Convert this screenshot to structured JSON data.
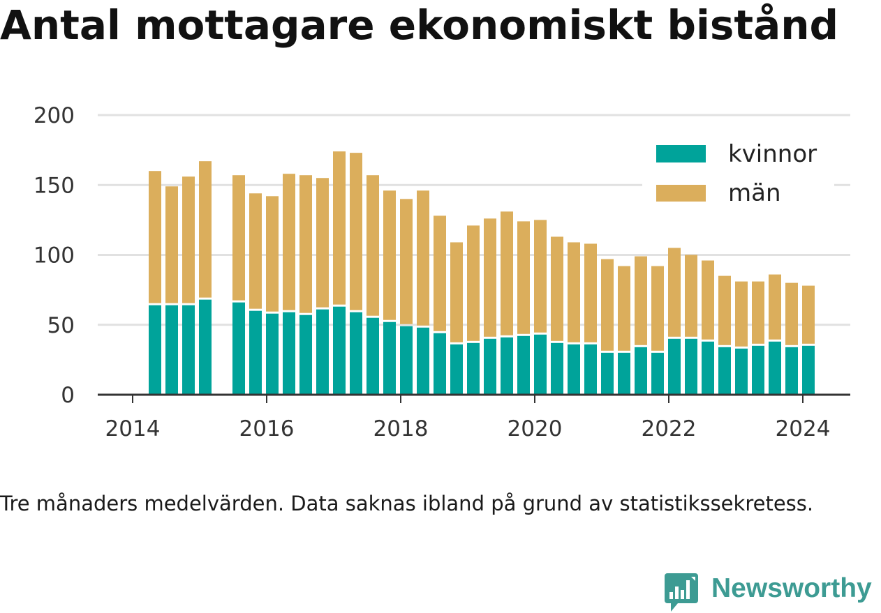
{
  "chart_data": {
    "type": "bar",
    "stacked": true,
    "title": "Antal mottagare ekonomiskt bistånd",
    "note": "Tre månaders medelvärden. Data saknas ibland på grund av statistikssekretess.",
    "x": [
      "2014-05",
      "2014-08",
      "2014-11",
      "2015-02",
      "2015-05",
      "2015-08",
      "2015-11",
      "2016-02",
      "2016-05",
      "2016-08",
      "2016-11",
      "2017-02",
      "2017-05",
      "2017-08",
      "2017-11",
      "2018-02",
      "2018-05",
      "2018-08",
      "2018-11",
      "2019-02",
      "2019-05",
      "2019-08",
      "2019-11",
      "2020-02",
      "2020-05",
      "2020-08",
      "2020-11",
      "2021-02",
      "2021-05",
      "2021-08",
      "2021-11",
      "2022-02",
      "2022-05",
      "2022-08",
      "2022-11",
      "2023-02",
      "2023-05",
      "2023-08",
      "2023-11",
      "2024-02"
    ],
    "series": [
      {
        "name": "kvinnor",
        "color": "#00a39a",
        "values": [
          64,
          64,
          64,
          68,
          null,
          66,
          60,
          58,
          59,
          57,
          61,
          63,
          59,
          55,
          52,
          49,
          48,
          44,
          36,
          37,
          40,
          41,
          42,
          43,
          37,
          36,
          36,
          30,
          30,
          34,
          30,
          40,
          40,
          38,
          34,
          33,
          35,
          38,
          34,
          35
        ]
      },
      {
        "name": "män",
        "color": "#dbae5c",
        "values": [
          96,
          85,
          92,
          99,
          null,
          91,
          84,
          84,
          99,
          100,
          94,
          111,
          114,
          102,
          94,
          91,
          98,
          84,
          73,
          84,
          86,
          90,
          82,
          82,
          76,
          73,
          72,
          67,
          62,
          65,
          62,
          65,
          60,
          58,
          51,
          48,
          46,
          48,
          46,
          43
        ]
      }
    ],
    "ylim": [
      0,
      200
    ],
    "yticks": [
      0,
      50,
      100,
      150,
      200
    ],
    "xticks": [
      2014,
      2016,
      2018,
      2020,
      2022,
      2024
    ],
    "grid": true,
    "legend": "top-right"
  },
  "logo": {
    "text": "Newsworthy",
    "icon": "newsworthy-chart-bubble-icon",
    "color": "#3d9b93"
  }
}
